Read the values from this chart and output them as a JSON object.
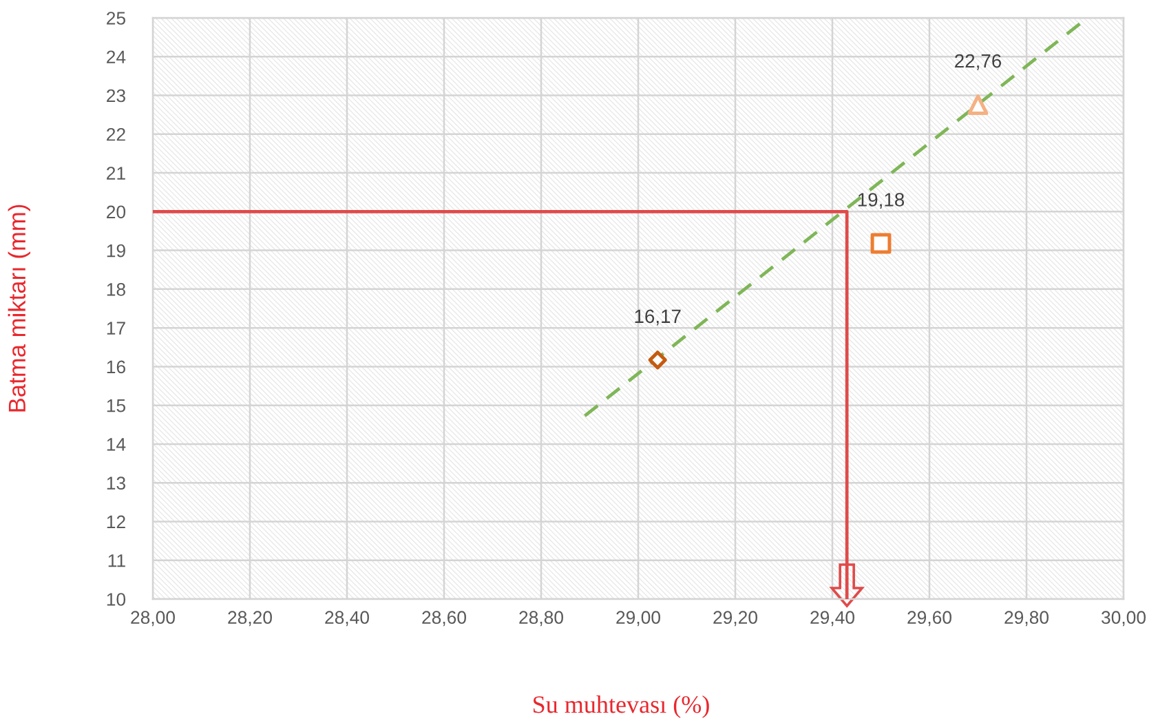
{
  "chart_data": {
    "type": "scatter",
    "xlabel": "Su muhtevası (%)",
    "ylabel": "Batma miktarı (mm)",
    "xlim": [
      28,
      30
    ],
    "xticks": [
      {
        "value": 28,
        "label": "28,00"
      },
      {
        "value": 28.2,
        "label": "28,20"
      },
      {
        "value": 28.4,
        "label": "28,40"
      },
      {
        "value": 28.6,
        "label": "28,60"
      },
      {
        "value": 28.8,
        "label": "28,80"
      },
      {
        "value": 29,
        "label": "29,00"
      },
      {
        "value": 29.2,
        "label": "29,20"
      },
      {
        "value": 29.4,
        "label": "29,40"
      },
      {
        "value": 29.6,
        "label": "29,60"
      },
      {
        "value": 29.8,
        "label": "29,80"
      },
      {
        "value": 30,
        "label": "30,00"
      }
    ],
    "ylim": [
      10,
      25
    ],
    "yticks": [
      10,
      11,
      12,
      13,
      14,
      15,
      16,
      17,
      18,
      19,
      20,
      21,
      22,
      23,
      24,
      25
    ],
    "grid": true,
    "series": [
      {
        "type": "line",
        "color": "#e04a4a",
        "x": [
          28,
          29.43,
          29.43
        ],
        "values": [
          20,
          20,
          10
        ],
        "line_style": "solid",
        "marker": "none"
      },
      {
        "type": "line",
        "color": "#7fb657",
        "x": [
          28.89,
          29.91
        ],
        "values": [
          14.73,
          24.85
        ],
        "line_style": "dashed",
        "marker": "none"
      },
      {
        "type": "scatter",
        "color": "#c55a11",
        "x": [
          29.04
        ],
        "values": [
          16.17
        ],
        "marker": "diamond",
        "value_labels": [
          "16,17"
        ]
      },
      {
        "type": "scatter",
        "color": "#ed7d31",
        "x": [
          29.5
        ],
        "values": [
          19.18
        ],
        "marker": "square",
        "value_labels": [
          "19,18"
        ]
      },
      {
        "type": "scatter",
        "color": "#f4b183",
        "x": [
          29.7
        ],
        "values": [
          22.76
        ],
        "marker": "triangle",
        "value_labels": [
          "22,76"
        ]
      }
    ]
  }
}
